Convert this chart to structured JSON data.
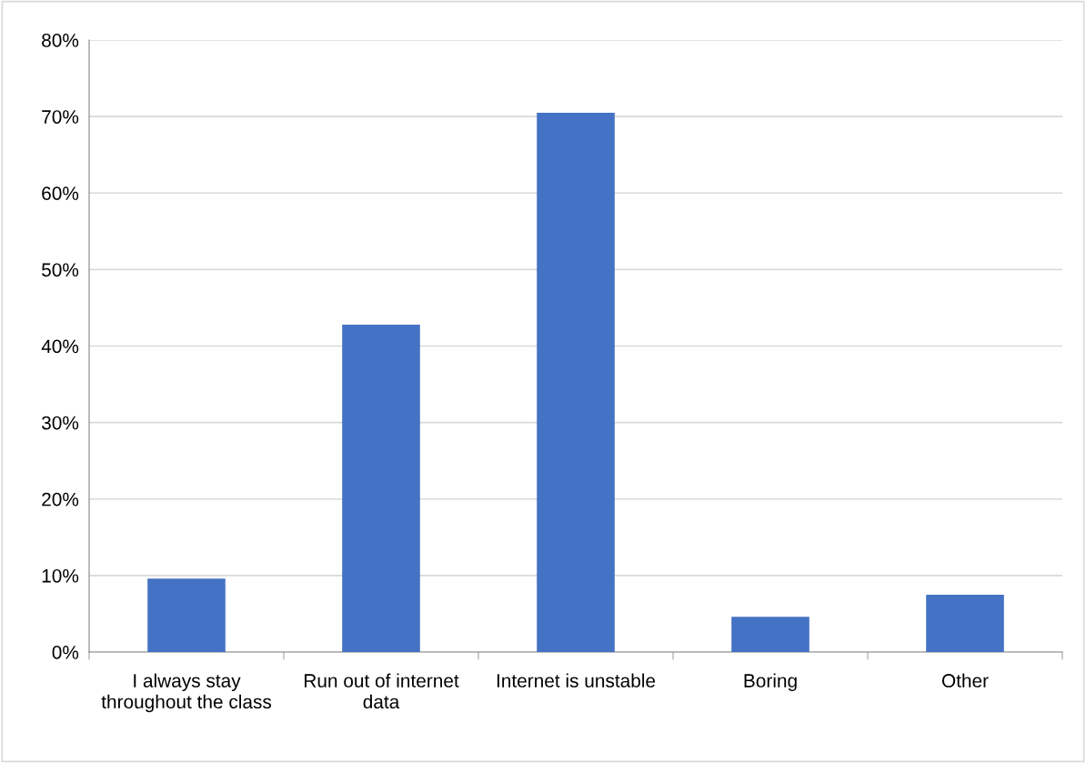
{
  "chart_data": {
    "type": "bar",
    "categories": [
      "I always stay throughout the class",
      "Run out of internet data",
      "Internet is unstable",
      "Boring",
      "Other"
    ],
    "values": [
      9.6,
      42.8,
      70.5,
      4.6,
      7.5
    ],
    "color": "#4472c4",
    "ylim": [
      0,
      80
    ],
    "yticks": [
      {
        "value": 0,
        "label": "0%"
      },
      {
        "value": 10,
        "label": "10%"
      },
      {
        "value": 20,
        "label": "20%"
      },
      {
        "value": 30,
        "label": "30%"
      },
      {
        "value": 40,
        "label": "40%"
      },
      {
        "value": 50,
        "label": "50%"
      },
      {
        "value": 60,
        "label": "60%"
      },
      {
        "value": 70,
        "label": "70%"
      },
      {
        "value": 80,
        "label": "80%"
      }
    ],
    "grid": "y",
    "legend": false
  }
}
